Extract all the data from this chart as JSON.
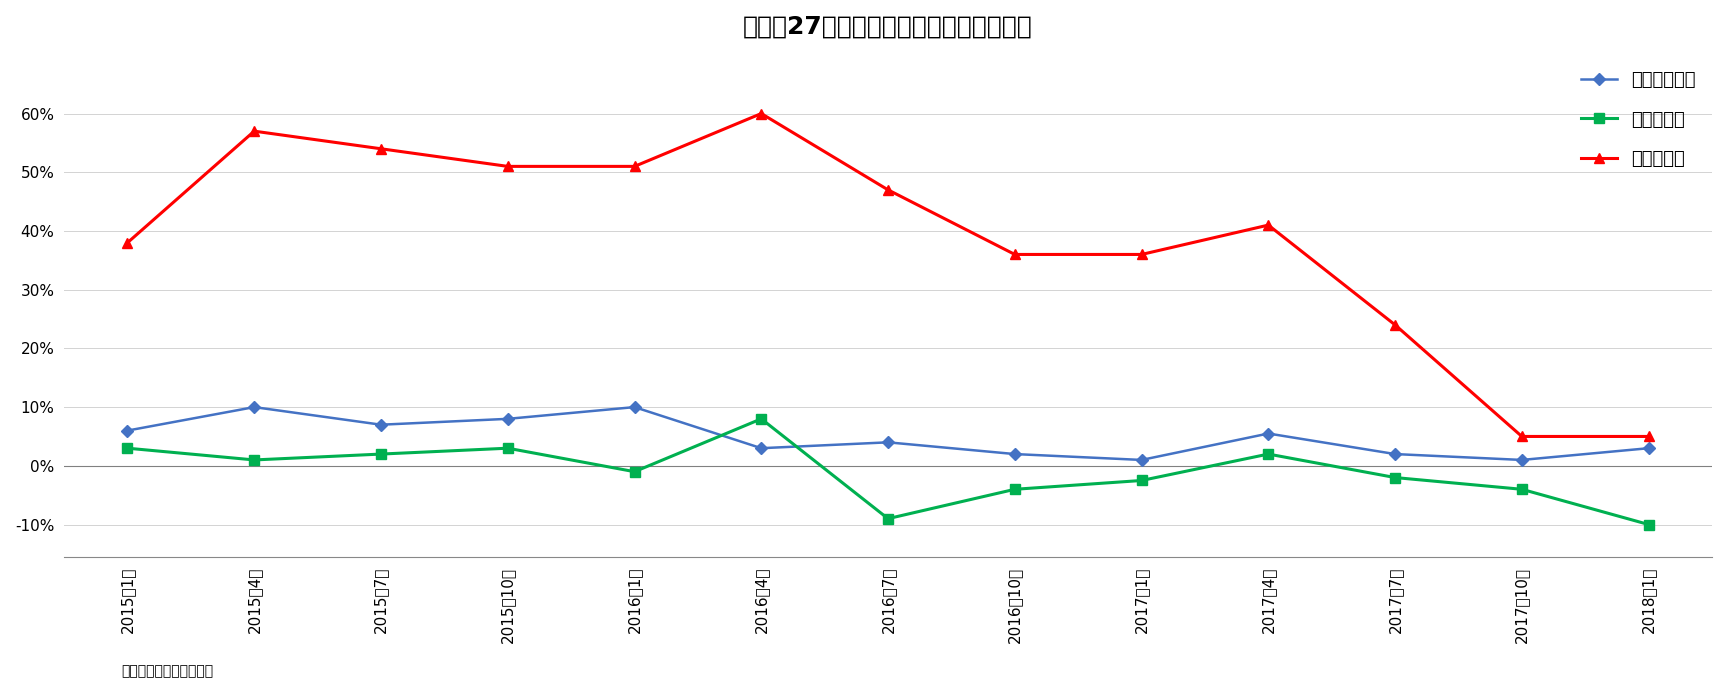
{
  "title": "図表－27　延べ宿泊者数（前年同期比）",
  "source_label": "（出所）日本政府観光局",
  "x_labels": [
    "2015年1月",
    "2015年4月",
    "2015年7月",
    "2015年10月",
    "2016年1月",
    "2016年4月",
    "2016年7月",
    "2016年10月",
    "2017年1月",
    "2017年4月",
    "2017年7月",
    "2017年10月",
    "2018年1月"
  ],
  "series_total": {
    "name": "延べ宿泊者数",
    "color": "#4472C4",
    "marker": "D",
    "markersize": 6,
    "linewidth": 1.8,
    "values": [
      0.06,
      0.1,
      0.07,
      0.08,
      0.1,
      0.03,
      0.04,
      0.02,
      0.01,
      0.055,
      0.02,
      0.01,
      0.03
    ]
  },
  "series_japanese": {
    "name": "うち日本人",
    "color": "#00B050",
    "marker": "s",
    "markersize": 7,
    "linewidth": 2.2,
    "values": [
      0.03,
      0.01,
      0.02,
      0.03,
      -0.01,
      0.08,
      -0.09,
      -0.04,
      -0.025,
      0.02,
      -0.02,
      -0.04,
      -0.1
    ]
  },
  "series_foreign": {
    "name": "うち外国人",
    "color": "#FF0000",
    "marker": "^",
    "markersize": 7,
    "linewidth": 2.2,
    "values": [
      0.38,
      0.57,
      0.54,
      0.51,
      0.51,
      0.6,
      0.47,
      0.36,
      0.36,
      0.41,
      0.24,
      0.05,
      0.05
    ]
  },
  "ylim": [
    -0.155,
    0.7
  ],
  "yticks": [
    -0.1,
    0.0,
    0.1,
    0.2,
    0.3,
    0.4,
    0.5,
    0.6
  ],
  "ytick_labels": [
    "-10%",
    "0%",
    "10%",
    "20%",
    "30%",
    "40%",
    "50%",
    "60%"
  ],
  "background_color": "#FFFFFF",
  "title_fontsize": 18,
  "axis_fontsize": 11,
  "legend_fontsize": 13
}
